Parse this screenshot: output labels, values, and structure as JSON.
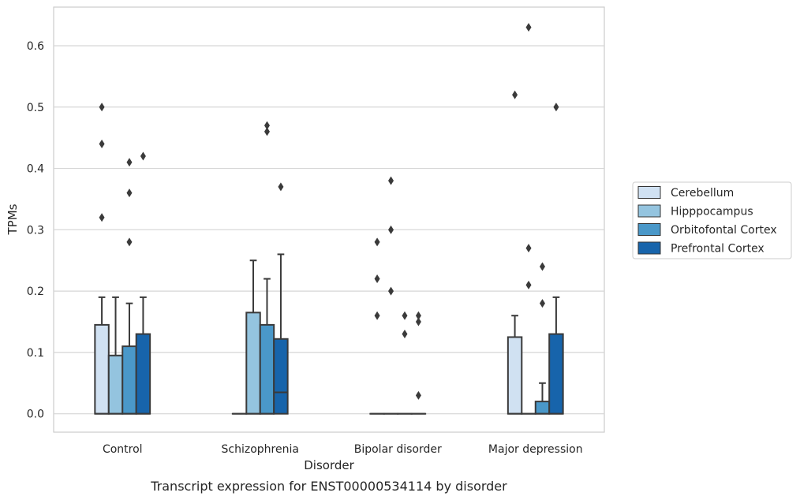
{
  "chart_data": {
    "type": "box",
    "title": "",
    "caption": "Transcript expression for ENST00000534114 by disorder",
    "xlabel": "Disorder",
    "ylabel": "TPMs",
    "ylim": [
      -0.03,
      0.663
    ],
    "yticks": [
      "0.0",
      "0.1",
      "0.2",
      "0.3",
      "0.4",
      "0.5",
      "0.6"
    ],
    "categories": [
      "Control",
      "Schizophrenia",
      "Bipolar disorder",
      "Major depression"
    ],
    "grid": "horizontal",
    "legend_position": "right",
    "series": [
      {
        "name": "Cerebellum",
        "color": "#d0e1f2",
        "boxes": [
          {
            "q1": 0.0,
            "median": 0.0,
            "q3": 0.145,
            "whisker_low": 0.0,
            "whisker_high": 0.19,
            "outliers": [
              0.32,
              0.44,
              0.5
            ]
          },
          {
            "q1": 0.0,
            "median": 0.0,
            "q3": 0.0,
            "whisker_low": 0.0,
            "whisker_high": 0.0,
            "outliers": []
          },
          {
            "q1": 0.0,
            "median": 0.0,
            "q3": 0.0,
            "whisker_low": 0.0,
            "whisker_high": 0.0,
            "outliers": [
              0.16,
              0.22,
              0.28
            ]
          },
          {
            "q1": 0.0,
            "median": 0.0,
            "q3": 0.125,
            "whisker_low": 0.0,
            "whisker_high": 0.16,
            "outliers": [
              0.52
            ]
          }
        ]
      },
      {
        "name": "Hipppocampus",
        "color": "#94c4df",
        "boxes": [
          {
            "q1": 0.0,
            "median": 0.0,
            "q3": 0.095,
            "whisker_low": 0.0,
            "whisker_high": 0.19,
            "outliers": []
          },
          {
            "q1": 0.0,
            "median": 0.0,
            "q3": 0.165,
            "whisker_low": 0.0,
            "whisker_high": 0.25,
            "outliers": []
          },
          {
            "q1": 0.0,
            "median": 0.0,
            "q3": 0.0,
            "whisker_low": 0.0,
            "whisker_high": 0.0,
            "outliers": [
              0.2,
              0.3,
              0.38
            ]
          },
          {
            "q1": 0.0,
            "median": 0.0,
            "q3": 0.0,
            "whisker_low": 0.0,
            "whisker_high": 0.0,
            "outliers": [
              0.21,
              0.27,
              0.63
            ]
          }
        ]
      },
      {
        "name": "Orbitofontal Cortex",
        "color": "#4a98c9",
        "boxes": [
          {
            "q1": 0.0,
            "median": 0.0,
            "q3": 0.11,
            "whisker_low": 0.0,
            "whisker_high": 0.18,
            "outliers": [
              0.28,
              0.36,
              0.41
            ]
          },
          {
            "q1": 0.0,
            "median": 0.0,
            "q3": 0.145,
            "whisker_low": 0.0,
            "whisker_high": 0.22,
            "outliers": [
              0.46,
              0.47
            ]
          },
          {
            "q1": 0.0,
            "median": 0.0,
            "q3": 0.0,
            "whisker_low": 0.0,
            "whisker_high": 0.0,
            "outliers": [
              0.13,
              0.16
            ]
          },
          {
            "q1": 0.0,
            "median": 0.0,
            "q3": 0.02,
            "whisker_low": 0.0,
            "whisker_high": 0.05,
            "outliers": [
              0.18,
              0.24
            ]
          }
        ]
      },
      {
        "name": "Prefrontal Cortex",
        "color": "#1764ab",
        "boxes": [
          {
            "q1": 0.0,
            "median": 0.0,
            "q3": 0.13,
            "whisker_low": 0.0,
            "whisker_high": 0.19,
            "outliers": [
              0.42
            ]
          },
          {
            "q1": 0.0,
            "median": 0.035,
            "q3": 0.122,
            "whisker_low": 0.0,
            "whisker_high": 0.26,
            "outliers": [
              0.37
            ]
          },
          {
            "q1": 0.0,
            "median": 0.0,
            "q3": 0.0,
            "whisker_low": 0.0,
            "whisker_high": 0.0,
            "outliers": [
              0.03,
              0.15,
              0.16
            ]
          },
          {
            "q1": 0.0,
            "median": 0.0,
            "q3": 0.13,
            "whisker_low": 0.0,
            "whisker_high": 0.19,
            "outliers": [
              0.5
            ]
          }
        ]
      }
    ]
  }
}
